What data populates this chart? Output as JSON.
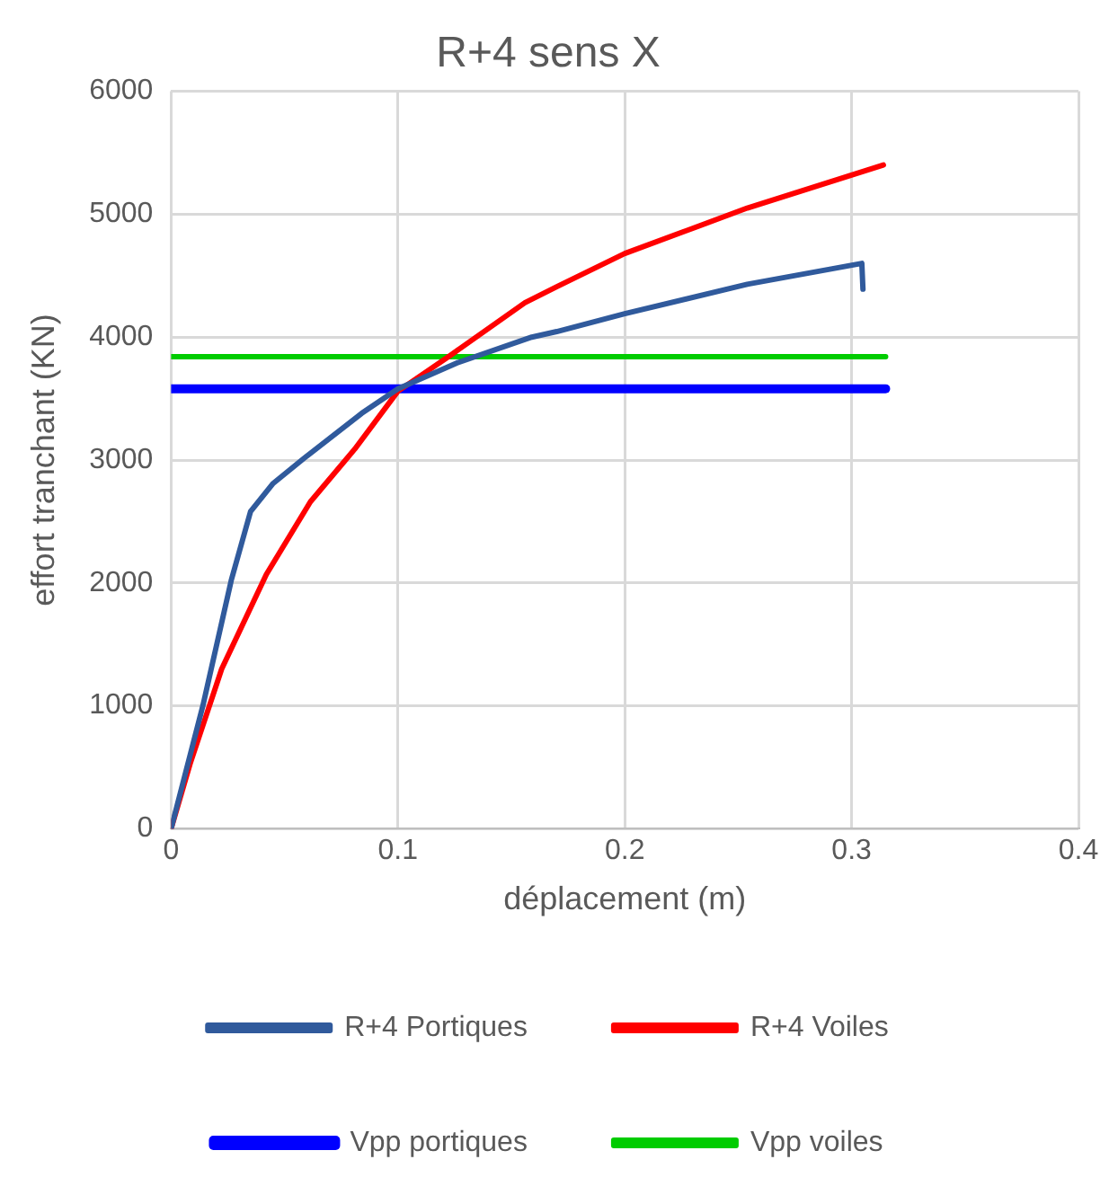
{
  "chart_data": {
    "type": "line",
    "title": "R+4 sens X",
    "xlabel": "déplacement (m)",
    "ylabel": "effort tranchant (KN)",
    "xlim": [
      0,
      0.4
    ],
    "xticks": [
      0,
      0.1,
      0.2,
      0.3,
      0.4
    ],
    "ylim": [
      0,
      6000
    ],
    "yticks": [
      0,
      1000,
      2000,
      3000,
      4000,
      5000,
      6000
    ],
    "grid": true,
    "legend": "bottom",
    "marker": "none",
    "line_style": "solid",
    "series": [
      {
        "name": "R+4 Portiques",
        "color": "#305a9c",
        "x": [
          0,
          0.014,
          0.0265,
          0.035,
          0.045,
          0.059,
          0.084,
          0.1,
          0.126,
          0.159,
          0.17,
          0.2,
          0.254,
          0.3045,
          0.305
        ],
        "values": [
          0,
          1000,
          2020,
          2580,
          2810,
          3020,
          3380,
          3580,
          3790,
          4000,
          4045,
          4190,
          4430,
          4600,
          4390
        ]
      },
      {
        "name": "R+4 Voiles",
        "color": "#ff0000",
        "x": [
          0,
          0.0084,
          0.0223,
          0.042,
          0.0614,
          0.081,
          0.1,
          0.123,
          0.156,
          0.17,
          0.2,
          0.254,
          0.314
        ],
        "values": [
          0,
          530,
          1300,
          2070,
          2660,
          3090,
          3560,
          3850,
          4280,
          4410,
          4680,
          5050,
          5400
        ]
      },
      {
        "name": "Vpp portiques",
        "color": "#0000ff",
        "x": [
          0,
          0.315
        ],
        "values": [
          3580,
          3580
        ]
      },
      {
        "name": "Vpp voiles",
        "color": "#00cc00",
        "x": [
          0,
          0.315
        ],
        "values": [
          3840,
          3840
        ]
      }
    ]
  }
}
